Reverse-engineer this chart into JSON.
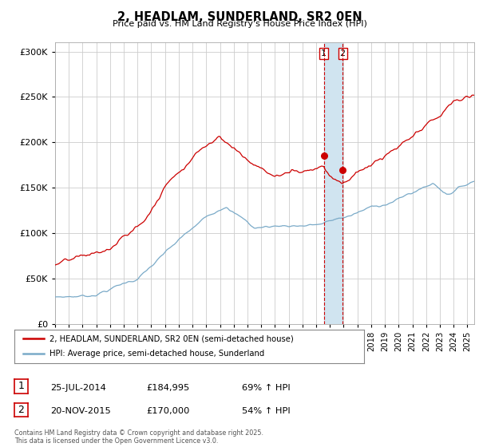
{
  "title": "2, HEADLAM, SUNDERLAND, SR2 0EN",
  "subtitle": "Price paid vs. HM Land Registry's House Price Index (HPI)",
  "legend_line1": "2, HEADLAM, SUNDERLAND, SR2 0EN (semi-detached house)",
  "legend_line2": "HPI: Average price, semi-detached house, Sunderland",
  "sale1_date": "25-JUL-2014",
  "sale1_price": "£184,995",
  "sale1_hpi": "69% ↑ HPI",
  "sale2_date": "20-NOV-2015",
  "sale2_price": "£170,000",
  "sale2_hpi": "54% ↑ HPI",
  "copyright": "Contains HM Land Registry data © Crown copyright and database right 2025.\nThis data is licensed under the Open Government Licence v3.0.",
  "red_color": "#cc0000",
  "blue_color": "#7aaac8",
  "vline_color": "#cc0000",
  "shade_color": "#d0e4f0",
  "bg_color": "#ffffff",
  "grid_color": "#cccccc",
  "ylim": [
    0,
    310000
  ],
  "yticks": [
    0,
    50000,
    100000,
    150000,
    200000,
    250000,
    300000
  ],
  "xlim_start": 1995.0,
  "xlim_end": 2025.5,
  "sale1_x": 2014.56,
  "sale2_x": 2015.92,
  "sale1_y": 184995,
  "sale2_y": 170000
}
